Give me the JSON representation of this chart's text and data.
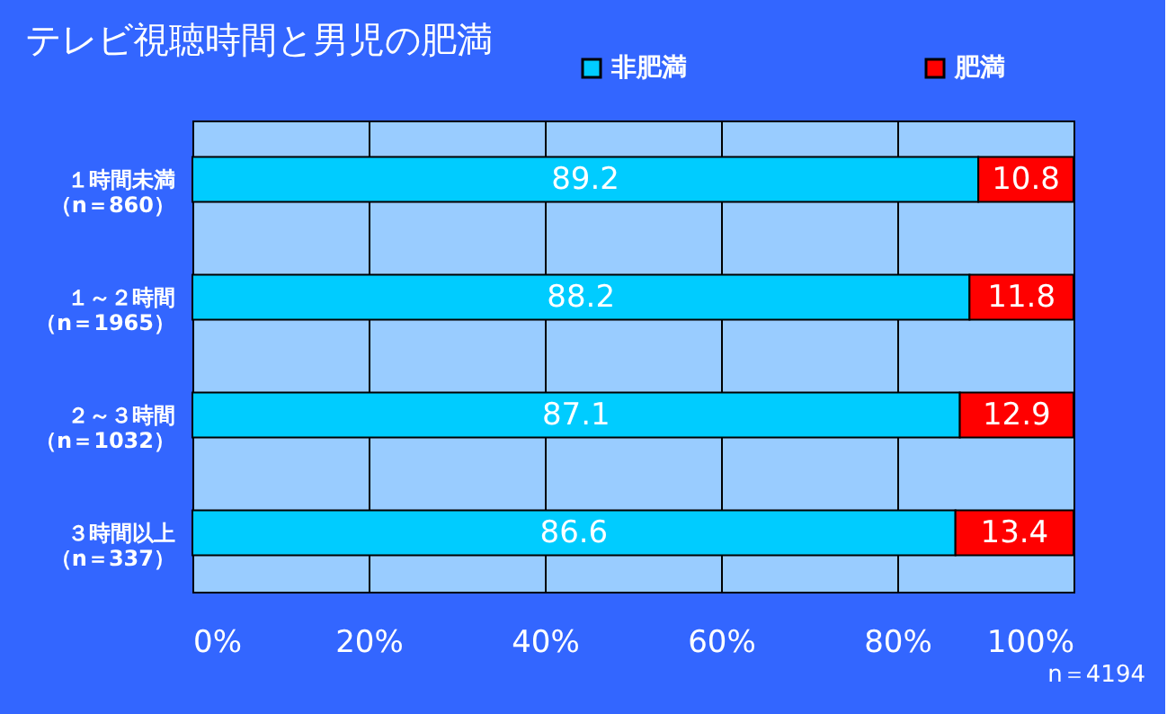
{
  "chart_data": {
    "type": "bar",
    "orientation": "horizontal",
    "stacked": true,
    "title": "テレビ視聴時間と男児の肥満",
    "categories": [
      "１時間未満（n＝860）",
      "１～２時間（n＝1965）",
      "２～３時間（n＝1032）",
      "３時間以上（n＝337）"
    ],
    "series": [
      {
        "name": "非肥満",
        "color": "#00ccff",
        "values": [
          89.2,
          88.2,
          87.1,
          86.6
        ]
      },
      {
        "name": "肥満",
        "color": "#ff0000",
        "values": [
          10.8,
          11.8,
          12.9,
          13.4
        ]
      }
    ],
    "xlim": [
      0,
      100
    ],
    "xticks": [
      {
        "value": 0,
        "label": "0%"
      },
      {
        "value": 20,
        "label": "20%"
      },
      {
        "value": 40,
        "label": "40%"
      },
      {
        "value": 60,
        "label": "60%"
      },
      {
        "value": 80,
        "label": "80%"
      },
      {
        "value": 100,
        "label": "100%"
      }
    ],
    "data_labels": true,
    "grid": "x",
    "legend": "top",
    "annotations": [
      "n＝4194"
    ]
  }
}
